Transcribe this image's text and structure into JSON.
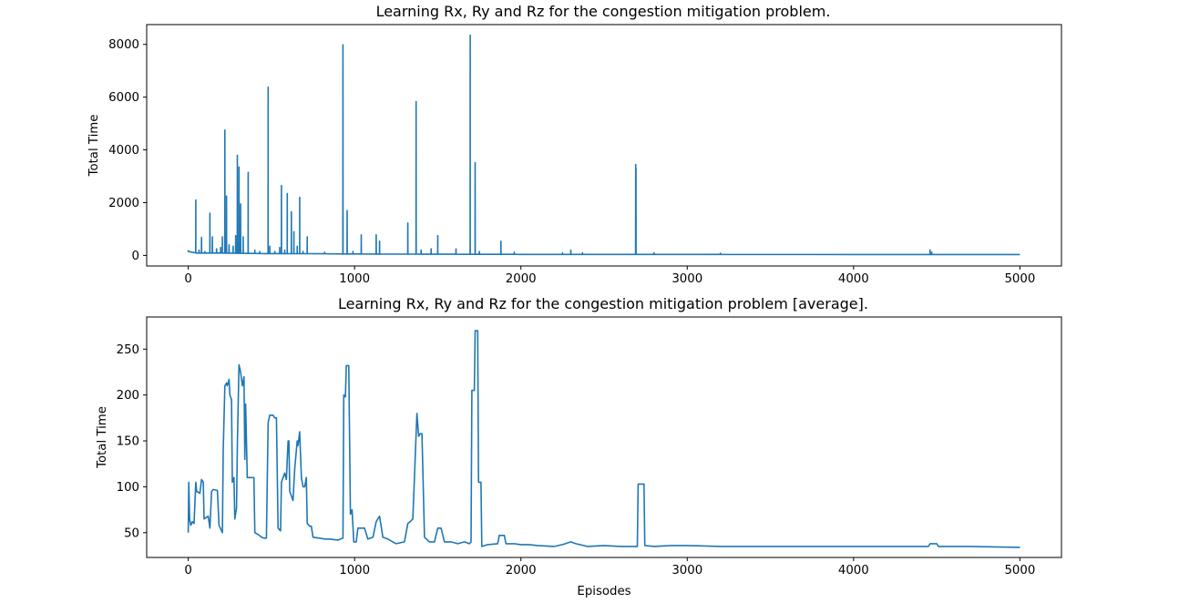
{
  "chart_data": [
    {
      "type": "line",
      "title": "Learning Rx, Ry and Rz for the congestion mitigation problem.",
      "xlabel": "",
      "ylabel": "Total Time",
      "xlim": [
        -250,
        5250
      ],
      "ylim": [
        -400,
        8750
      ],
      "xticks": [
        0,
        1000,
        2000,
        3000,
        4000,
        5000
      ],
      "xtick_labels": [
        "0",
        "1000",
        "2000",
        "3000",
        "4000",
        "5000"
      ],
      "yticks": [
        0,
        2000,
        4000,
        6000,
        8000
      ],
      "ytick_labels": [
        "0",
        "2000",
        "4000",
        "6000",
        "8000"
      ],
      "color": "#1f77b4",
      "grid": false,
      "series": [
        {
          "baseline": [
            [
              0,
              150
            ],
            [
              50,
              90
            ],
            [
              200,
              90
            ],
            [
              300,
              80
            ],
            [
              500,
              70
            ],
            [
              700,
              65
            ],
            [
              1000,
              55
            ],
            [
              1500,
              45
            ],
            [
              2000,
              40
            ],
            [
              3000,
              38
            ],
            [
              4000,
              36
            ],
            [
              5000,
              35
            ]
          ],
          "spikes": [
            [
              0,
              180
            ],
            [
              20,
              130
            ],
            [
              45,
              2100
            ],
            [
              65,
              200
            ],
            [
              80,
              680
            ],
            [
              100,
              150
            ],
            [
              130,
              1600
            ],
            [
              145,
              700
            ],
            [
              170,
              250
            ],
            [
              195,
              300
            ],
            [
              205,
              700
            ],
            [
              220,
              4750
            ],
            [
              230,
              2250
            ],
            [
              245,
              400
            ],
            [
              270,
              350
            ],
            [
              285,
              750
            ],
            [
              295,
              3800
            ],
            [
              305,
              3350
            ],
            [
              315,
              1950
            ],
            [
              330,
              700
            ],
            [
              360,
              3150
            ],
            [
              400,
              200
            ],
            [
              430,
              150
            ],
            [
              480,
              6380
            ],
            [
              490,
              350
            ],
            [
              520,
              150
            ],
            [
              550,
              300
            ],
            [
              560,
              2650
            ],
            [
              580,
              200
            ],
            [
              595,
              2350
            ],
            [
              620,
              1650
            ],
            [
              635,
              900
            ],
            [
              655,
              350
            ],
            [
              670,
              2200
            ],
            [
              690,
              150
            ],
            [
              715,
              700
            ],
            [
              820,
              120
            ],
            [
              930,
              7980
            ],
            [
              955,
              1700
            ],
            [
              990,
              150
            ],
            [
              1040,
              780
            ],
            [
              1130,
              780
            ],
            [
              1150,
              540
            ],
            [
              1320,
              1230
            ],
            [
              1370,
              5830
            ],
            [
              1400,
              200
            ],
            [
              1460,
              250
            ],
            [
              1500,
              750
            ],
            [
              1610,
              250
            ],
            [
              1695,
              8350
            ],
            [
              1725,
              3520
            ],
            [
              1750,
              150
            ],
            [
              1880,
              540
            ],
            [
              1960,
              120
            ],
            [
              2250,
              100
            ],
            [
              2300,
              200
            ],
            [
              2370,
              100
            ],
            [
              2690,
              3450
            ],
            [
              2692,
              3300
            ],
            [
              2800,
              100
            ],
            [
              3200,
              80
            ],
            [
              4460,
              200
            ],
            [
              4470,
              120
            ]
          ]
        }
      ]
    },
    {
      "type": "line",
      "title": "Learning Rx, Ry and Rz for the congestion mitigation problem [average].",
      "xlabel": "Episodes",
      "ylabel": "Total Time",
      "xlim": [
        -250,
        5250
      ],
      "ylim": [
        23,
        285
      ],
      "xticks": [
        0,
        1000,
        2000,
        3000,
        4000,
        5000
      ],
      "xtick_labels": [
        "0",
        "1000",
        "2000",
        "3000",
        "4000",
        "5000"
      ],
      "yticks": [
        50,
        100,
        150,
        200,
        250
      ],
      "ytick_labels": [
        "50",
        "100",
        "150",
        "200",
        "250"
      ],
      "color": "#1f77b4",
      "grid": false,
      "series": [
        {
          "points": [
            [
              0,
              50
            ],
            [
              3,
              105
            ],
            [
              8,
              65
            ],
            [
              15,
              58
            ],
            [
              25,
              62
            ],
            [
              35,
              60
            ],
            [
              45,
              105
            ],
            [
              50,
              95
            ],
            [
              70,
              93
            ],
            [
              80,
              108
            ],
            [
              90,
              105
            ],
            [
              95,
              65
            ],
            [
              120,
              68
            ],
            [
              130,
              55
            ],
            [
              140,
              95
            ],
            [
              150,
              97
            ],
            [
              175,
              96
            ],
            [
              185,
              58
            ],
            [
              205,
              50
            ],
            [
              210,
              140
            ],
            [
              220,
              210
            ],
            [
              230,
              213
            ],
            [
              235,
              210
            ],
            [
              245,
              217
            ],
            [
              250,
              200
            ],
            [
              260,
              195
            ],
            [
              265,
              105
            ],
            [
              275,
              110
            ],
            [
              280,
              65
            ],
            [
              290,
              77
            ],
            [
              295,
              145
            ],
            [
              305,
              233
            ],
            [
              315,
              225
            ],
            [
              325,
              210
            ],
            [
              335,
              220
            ],
            [
              340,
              130
            ],
            [
              345,
              190
            ],
            [
              355,
              110
            ],
            [
              375,
              110
            ],
            [
              395,
              110
            ],
            [
              400,
              50
            ],
            [
              420,
              48
            ],
            [
              440,
              45
            ],
            [
              455,
              44
            ],
            [
              470,
              44
            ],
            [
              480,
              170
            ],
            [
              490,
              178
            ],
            [
              510,
              178
            ],
            [
              520,
              175
            ],
            [
              530,
              175
            ],
            [
              540,
              55
            ],
            [
              555,
              52
            ],
            [
              560,
              105
            ],
            [
              570,
              110
            ],
            [
              580,
              115
            ],
            [
              590,
              108
            ],
            [
              600,
              150
            ],
            [
              605,
              150
            ],
            [
              610,
              95
            ],
            [
              620,
              90
            ],
            [
              630,
              85
            ],
            [
              640,
              120
            ],
            [
              655,
              150
            ],
            [
              660,
              145
            ],
            [
              670,
              160
            ],
            [
              680,
              110
            ],
            [
              690,
              100
            ],
            [
              700,
              100
            ],
            [
              710,
              110
            ],
            [
              715,
              60
            ],
            [
              730,
              57
            ],
            [
              740,
              57
            ],
            [
              750,
              45
            ],
            [
              790,
              44
            ],
            [
              820,
              43
            ],
            [
              850,
              43
            ],
            [
              900,
              42
            ],
            [
              930,
              44
            ],
            [
              935,
              200
            ],
            [
              945,
              198
            ],
            [
              950,
              232
            ],
            [
              965,
              232
            ],
            [
              975,
              70
            ],
            [
              985,
              75
            ],
            [
              995,
              40
            ],
            [
              1010,
              40
            ],
            [
              1020,
              55
            ],
            [
              1040,
              55
            ],
            [
              1060,
              55
            ],
            [
              1080,
              43
            ],
            [
              1110,
              45
            ],
            [
              1130,
              62
            ],
            [
              1150,
              68
            ],
            [
              1170,
              45
            ],
            [
              1200,
              43
            ],
            [
              1250,
              38
            ],
            [
              1300,
              40
            ],
            [
              1320,
              60
            ],
            [
              1340,
              63
            ],
            [
              1350,
              65
            ],
            [
              1375,
              180
            ],
            [
              1385,
              155
            ],
            [
              1395,
              158
            ],
            [
              1405,
              158
            ],
            [
              1420,
              45
            ],
            [
              1450,
              40
            ],
            [
              1480,
              40
            ],
            [
              1500,
              55
            ],
            [
              1520,
              55
            ],
            [
              1540,
              40
            ],
            [
              1580,
              40
            ],
            [
              1620,
              38
            ],
            [
              1660,
              40
            ],
            [
              1690,
              38
            ],
            [
              1700,
              40
            ],
            [
              1705,
              205
            ],
            [
              1720,
              205
            ],
            [
              1725,
              270
            ],
            [
              1740,
              270
            ],
            [
              1745,
              105
            ],
            [
              1760,
              105
            ],
            [
              1765,
              35
            ],
            [
              1800,
              37
            ],
            [
              1860,
              38
            ],
            [
              1870,
              47
            ],
            [
              1900,
              47
            ],
            [
              1910,
              38
            ],
            [
              1960,
              38
            ],
            [
              2000,
              37
            ],
            [
              2050,
              37
            ],
            [
              2100,
              36
            ],
            [
              2200,
              35
            ],
            [
              2250,
              37
            ],
            [
              2300,
              40
            ],
            [
              2330,
              38
            ],
            [
              2400,
              35
            ],
            [
              2500,
              36
            ],
            [
              2600,
              35
            ],
            [
              2700,
              35
            ],
            [
              2705,
              103
            ],
            [
              2740,
              103
            ],
            [
              2745,
              36
            ],
            [
              2800,
              35
            ],
            [
              2900,
              36
            ],
            [
              3000,
              36
            ],
            [
              3200,
              35
            ],
            [
              3500,
              35
            ],
            [
              4000,
              35
            ],
            [
              4200,
              35
            ],
            [
              4450,
              35
            ],
            [
              4460,
              38
            ],
            [
              4500,
              38
            ],
            [
              4510,
              35
            ],
            [
              4700,
              35
            ],
            [
              5000,
              34
            ]
          ]
        }
      ]
    }
  ]
}
